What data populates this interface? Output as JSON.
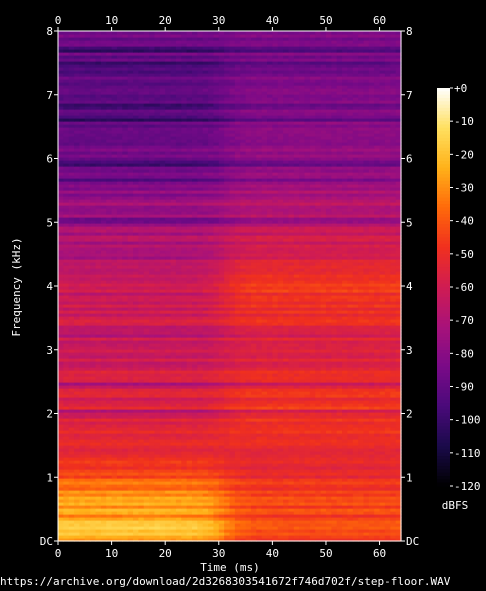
{
  "chart_data": {
    "type": "heatmap",
    "xlabel": "Time (ms)",
    "ylabel": "Frequency (kHz)",
    "xlim": [
      0,
      64
    ],
    "ylim": [
      0,
      8
    ],
    "x_ticks": [
      "0",
      "10",
      "20",
      "30",
      "40",
      "50",
      "60"
    ],
    "y_ticks": [
      "DC",
      "1",
      "2",
      "3",
      "4",
      "5",
      "6",
      "7",
      "8"
    ],
    "colorbar": {
      "label": "dBFS",
      "range": [
        -120,
        0
      ],
      "ticks": [
        "+0",
        "-10",
        "-20",
        "-30",
        "-40",
        "-50",
        "-60",
        "-70",
        "-80",
        "-90",
        "-100",
        "-110",
        "-120"
      ]
    },
    "colormap": [
      "#000000",
      "#1a0a4a",
      "#4a0a7a",
      "#7a0a88",
      "#a8127a",
      "#d01c52",
      "#f0301e",
      "#ff6a0a",
      "#ffb21a",
      "#ffe060",
      "#ffffff"
    ],
    "step_time_ms": 31,
    "level_profile_khz": [
      {
        "f": 0.0,
        "before": -24,
        "after": -44
      },
      {
        "f": 0.2,
        "before": -18,
        "after": -42
      },
      {
        "f": 0.4,
        "before": -26,
        "after": -43
      },
      {
        "f": 0.7,
        "before": -30,
        "after": -45
      },
      {
        "f": 1.0,
        "before": -40,
        "after": -50
      },
      {
        "f": 1.5,
        "before": -55,
        "after": -53
      },
      {
        "f": 2.0,
        "before": -57,
        "after": -48
      },
      {
        "f": 3.0,
        "before": -60,
        "after": -55
      },
      {
        "f": 4.0,
        "before": -64,
        "after": -48
      },
      {
        "f": 5.0,
        "before": -72,
        "after": -65
      },
      {
        "f": 6.0,
        "before": -86,
        "after": -78
      },
      {
        "f": 6.8,
        "before": -95,
        "after": -84
      },
      {
        "f": 7.5,
        "before": -90,
        "after": -84
      },
      {
        "f": 8.0,
        "before": -88,
        "after": -85
      }
    ]
  },
  "footer": {
    "source_url": "https://archive.org/download/2d3268303541672f746d702f/step-floor.WAV"
  }
}
